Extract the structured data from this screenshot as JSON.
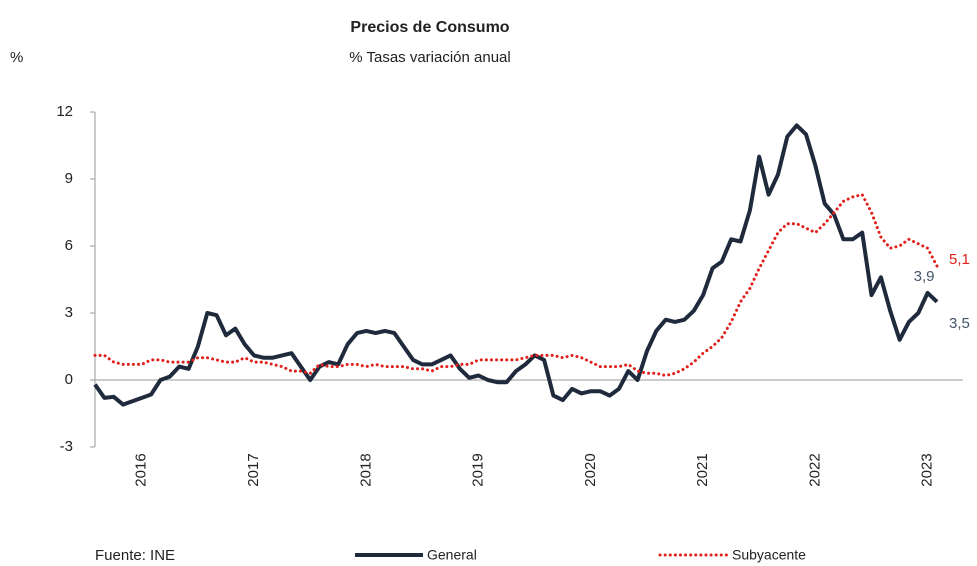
{
  "chart_data": {
    "type": "line",
    "title": "Precios de Consumo",
    "subtitle": "% Tasas variación anual",
    "y_label": "%",
    "source": "Fuente: INE",
    "categories": [
      null,
      null,
      null,
      null,
      null,
      "2016",
      null,
      null,
      null,
      null,
      null,
      null,
      null,
      null,
      null,
      null,
      null,
      "2017",
      null,
      null,
      null,
      null,
      null,
      null,
      null,
      null,
      null,
      null,
      null,
      "2018",
      null,
      null,
      null,
      null,
      null,
      null,
      null,
      null,
      null,
      null,
      null,
      "2019",
      null,
      null,
      null,
      null,
      null,
      null,
      null,
      null,
      null,
      null,
      null,
      "2020",
      null,
      null,
      null,
      null,
      null,
      null,
      null,
      null,
      null,
      null,
      null,
      "2021",
      null,
      null,
      null,
      null,
      null,
      null,
      null,
      null,
      null,
      null,
      null,
      "2022",
      null,
      null,
      null,
      null,
      null,
      null,
      null,
      null,
      null,
      null,
      null,
      "2023",
      null
    ],
    "series": [
      {
        "name": "General",
        "color": "#1f2a3c",
        "values": [
          -0.2,
          -0.8,
          -0.75,
          -1.1,
          -0.95,
          -0.8,
          -0.65,
          0.0,
          0.15,
          0.6,
          0.5,
          1.5,
          3.0,
          2.9,
          2.0,
          2.3,
          1.6,
          1.1,
          1.0,
          1.0,
          1.1,
          1.2,
          0.6,
          0.0,
          0.6,
          0.8,
          0.7,
          1.6,
          2.1,
          2.2,
          2.1,
          2.2,
          2.1,
          1.5,
          0.9,
          0.7,
          0.7,
          0.9,
          1.1,
          0.5,
          0.1,
          0.2,
          0.0,
          -0.1,
          -0.1,
          0.4,
          0.7,
          1.1,
          0.9,
          -0.7,
          -0.9,
          -0.4,
          -0.6,
          -0.5,
          -0.5,
          -0.7,
          -0.4,
          0.4,
          0.0,
          1.3,
          2.2,
          2.7,
          2.6,
          2.7,
          3.1,
          3.8,
          5.0,
          5.3,
          6.3,
          6.2,
          7.6,
          10.0,
          8.3,
          9.2,
          10.9,
          11.4,
          11.0,
          9.6,
          7.9,
          7.4,
          6.3,
          6.3,
          6.6,
          3.8,
          4.6,
          3.1,
          1.8,
          2.6,
          3.0,
          3.9,
          3.5
        ],
        "value_labels": [
          null,
          null,
          null,
          null,
          null,
          null,
          null,
          null,
          null,
          null,
          null,
          null,
          null,
          null,
          null,
          null,
          null,
          null,
          null,
          null,
          null,
          null,
          null,
          null,
          null,
          null,
          null,
          null,
          null,
          null,
          null,
          null,
          null,
          null,
          null,
          null,
          null,
          null,
          null,
          null,
          null,
          null,
          null,
          null,
          null,
          null,
          null,
          null,
          null,
          null,
          null,
          null,
          null,
          null,
          null,
          null,
          null,
          null,
          null,
          null,
          null,
          null,
          null,
          null,
          null,
          null,
          null,
          null,
          null,
          null,
          null,
          null,
          null,
          null,
          null,
          null,
          null,
          null,
          null,
          null,
          null,
          null,
          null,
          null,
          null,
          null,
          null,
          null,
          null,
          "3,9",
          "3,5"
        ]
      },
      {
        "name": "Subyacente",
        "color": "#e0201b",
        "dotted": true,
        "values": [
          1.1,
          1.1,
          0.8,
          0.7,
          0.7,
          0.7,
          0.9,
          0.9,
          0.8,
          0.8,
          0.8,
          1.0,
          1.0,
          0.9,
          0.8,
          0.8,
          1.0,
          0.8,
          0.8,
          0.7,
          0.6,
          0.4,
          0.4,
          0.3,
          0.7,
          0.6,
          0.6,
          0.7,
          0.7,
          0.6,
          0.7,
          0.6,
          0.6,
          0.6,
          0.5,
          0.5,
          0.4,
          0.6,
          0.6,
          0.7,
          0.7,
          0.9,
          0.9,
          0.9,
          0.9,
          0.9,
          1.0,
          1.1,
          1.1,
          1.1,
          1.0,
          1.1,
          1.0,
          0.8,
          0.6,
          0.6,
          0.6,
          0.7,
          0.4,
          0.3,
          0.3,
          0.2,
          0.3,
          0.5,
          0.8,
          1.2,
          1.5,
          1.9,
          2.6,
          3.5,
          4.1,
          5.0,
          5.8,
          6.6,
          7.0,
          7.0,
          6.8,
          6.6,
          7.0,
          7.5,
          8.0,
          8.2,
          8.3,
          7.5,
          6.4,
          5.9,
          6.0,
          6.3,
          6.1,
          5.9,
          5.1
        ],
        "value_labels": [
          null,
          null,
          null,
          null,
          null,
          null,
          null,
          null,
          null,
          null,
          null,
          null,
          null,
          null,
          null,
          null,
          null,
          null,
          null,
          null,
          null,
          null,
          null,
          null,
          null,
          null,
          null,
          null,
          null,
          null,
          null,
          null,
          null,
          null,
          null,
          null,
          null,
          null,
          null,
          null,
          null,
          null,
          null,
          null,
          null,
          null,
          null,
          null,
          null,
          null,
          null,
          null,
          null,
          null,
          null,
          null,
          null,
          null,
          null,
          null,
          null,
          null,
          null,
          null,
          null,
          null,
          null,
          null,
          null,
          null,
          null,
          null,
          null,
          null,
          null,
          null,
          null,
          null,
          null,
          null,
          null,
          null,
          null,
          null,
          null,
          null,
          null,
          null,
          null,
          null,
          "5,1"
        ]
      }
    ],
    "ylim": [
      -3,
      12
    ],
    "yticks": [
      12,
      9,
      6,
      3,
      0,
      -3
    ],
    "grid": false,
    "legend": "bottom"
  }
}
